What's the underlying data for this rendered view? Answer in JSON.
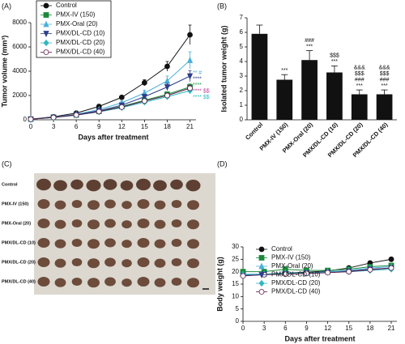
{
  "chart_data": [
    {
      "type": "line",
      "panel_label": "(A)",
      "x_label": "Days after treatment",
      "y_label": "Tumor volume (mm³)",
      "xlim": [
        0,
        21.8
      ],
      "xticks": [
        0,
        3,
        6,
        9,
        12,
        15,
        18,
        21
      ],
      "ylim": [
        0,
        8000
      ],
      "yticks": [
        0,
        2000,
        4000,
        6000,
        8000
      ],
      "x": [
        0,
        3,
        6,
        9,
        12,
        15,
        18,
        21
      ],
      "legend": "upper left",
      "legend_box": true,
      "series": [
        {
          "name": "Control",
          "color": "#111111",
          "marker": "circle",
          "values": [
            50,
            250,
            550,
            1100,
            1850,
            3050,
            4400,
            7000
          ],
          "errors": [
            20,
            40,
            80,
            100,
            150,
            250,
            400,
            800
          ]
        },
        {
          "name": "PMX-IV (150)",
          "color": "#1a8a3a",
          "marker": "square",
          "values": [
            50,
            200,
            400,
            700,
            1100,
            1600,
            2100,
            2700
          ],
          "errors": [
            20,
            30,
            50,
            70,
            100,
            150,
            200,
            250
          ]
        },
        {
          "name": "PMX-Oral (20)",
          "color": "#4ab0d8",
          "marker": "triangle-up",
          "values": [
            50,
            220,
            450,
            850,
            1400,
            2200,
            3200,
            4900
          ],
          "errors": [
            20,
            30,
            60,
            90,
            150,
            250,
            400,
            700
          ]
        },
        {
          "name": "PMX/DL-CD (10)",
          "color": "#2c3e8c",
          "marker": "triangle-down",
          "values": [
            50,
            200,
            420,
            750,
            1200,
            1900,
            2700,
            3600
          ],
          "errors": [
            20,
            30,
            50,
            80,
            120,
            200,
            300,
            450
          ]
        },
        {
          "name": "PMX/DL-CD (20)",
          "color": "#30b8c0",
          "marker": "diamond",
          "values": [
            50,
            180,
            380,
            650,
            1000,
            1450,
            1900,
            2400
          ],
          "errors": [
            20,
            30,
            40,
            60,
            90,
            130,
            180,
            230
          ]
        },
        {
          "name": "PMX/DL-CD (40)",
          "color": "#5a1a4a",
          "marker": "open-circle",
          "values": [
            50,
            190,
            390,
            680,
            1050,
            1550,
            2000,
            2600
          ],
          "errors": [
            20,
            30,
            40,
            60,
            90,
            130,
            180,
            240
          ]
        }
      ],
      "annotations": [
        {
          "text": "** #",
          "color": "#4ab0d8"
        },
        {
          "text": "****",
          "color": "#2c3e8c"
        },
        {
          "text": "****",
          "color": "#1a9a4a"
        },
        {
          "text": "**** $$",
          "color": "#c040a0"
        },
        {
          "text": "**** $$",
          "color": "#30b8c0"
        }
      ]
    },
    {
      "type": "bar",
      "panel_label": "(B)",
      "y_label": "Isolated tumor weight (g)",
      "categories": [
        "Control",
        "PMX-IV (150)",
        "PMX-Oral (20)",
        "PMX/DL-CD (10)",
        "PMX/DL-CD (20)",
        "PMX/DL-CD (40)"
      ],
      "values": [
        5.9,
        2.75,
        4.1,
        3.25,
        1.75,
        1.75
      ],
      "errors": [
        0.6,
        0.35,
        0.65,
        0.45,
        0.3,
        0.3
      ],
      "color": "#111111",
      "ylim": [
        0,
        7
      ],
      "yticks": [
        0,
        1,
        2,
        3,
        4,
        5,
        6,
        7
      ],
      "annotations": [
        [],
        [
          "***"
        ],
        [
          "###",
          "***"
        ],
        [
          "$$$",
          "***"
        ],
        [
          "&&&",
          "$$$",
          "###",
          "***"
        ],
        [
          "&&&",
          "$$$",
          "###",
          "***"
        ]
      ]
    },
    {
      "type": "line",
      "panel_label": "(D)",
      "x_label": "Days after treatment",
      "y_label": "Body weight (g)",
      "xlim": [
        0,
        21.8
      ],
      "xticks": [
        0,
        3,
        6,
        9,
        12,
        15,
        18,
        21
      ],
      "ylim": [
        0,
        30
      ],
      "yticks": [
        0,
        5,
        10,
        15,
        20,
        25,
        30
      ],
      "x": [
        0,
        3,
        6,
        9,
        12,
        15,
        18,
        21
      ],
      "legend": "upper left",
      "legend_box": false,
      "series": [
        {
          "name": "Control",
          "color": "#111111",
          "marker": "circle",
          "values": [
            18.5,
            19,
            19.5,
            19.8,
            20.3,
            21.5,
            23.5,
            25
          ]
        },
        {
          "name": "PMX-IV (150)",
          "color": "#1a8a3a",
          "marker": "square",
          "values": [
            20,
            20,
            21,
            20.5,
            20.5,
            21,
            22,
            22.5
          ]
        },
        {
          "name": "PMX-Oral (20)",
          "color": "#4ab0d8",
          "marker": "triangle-up",
          "values": [
            19,
            19,
            19.5,
            19.5,
            20,
            20.5,
            21.5,
            22
          ]
        },
        {
          "name": "PMX/DL-CD (10)",
          "color": "#2c3e8c",
          "marker": "triangle-down",
          "values": [
            18.5,
            19,
            19.2,
            19.5,
            19.8,
            20.2,
            21,
            21.5
          ]
        },
        {
          "name": "PMX/DL-CD (20)",
          "color": "#30b8c0",
          "marker": "diamond",
          "values": [
            18.8,
            19,
            19.3,
            19.5,
            19.8,
            20,
            20.5,
            21
          ]
        },
        {
          "name": "PMX/DL-CD (40)",
          "color": "#5a1a4a",
          "marker": "open-circle",
          "values": [
            18.3,
            18.8,
            19,
            19.3,
            19.6,
            20,
            20.8,
            21.5
          ]
        }
      ]
    }
  ],
  "photo": {
    "panel_label": "(C)",
    "row_labels": [
      "Control",
      "PMX-IV (150)",
      "PMX-Oral (20)",
      "PMX/DL-CD (10)",
      "PMX/DL-CD (20)",
      "PMX/DL-CD (40)"
    ]
  }
}
